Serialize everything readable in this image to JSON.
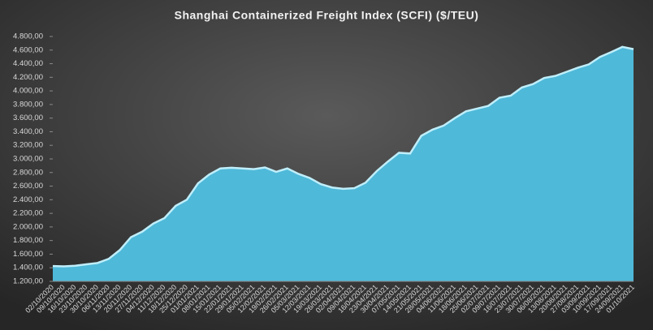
{
  "chart_data": {
    "type": "area",
    "title": "Shanghai Containerized Freight Index  (SCFI) ($/TEU)",
    "categories": [
      "02/10/2020",
      "09/10/2020",
      "16/10/2020",
      "23/10/2020",
      "30/10/2020",
      "06/11/2020",
      "13/11/2020",
      "20/11/2020",
      "27/11/2020",
      "04/12/2020",
      "11/12/2020",
      "18/12/2020",
      "25/12/2020",
      "01/01/2021",
      "08/01/2021",
      "15/01/2021",
      "22/01/2021",
      "29/01/2021",
      "05/02/2021",
      "12/02/2021",
      "19/02/2021",
      "26/02/2021",
      "05/03/2021",
      "12/03/2021",
      "19/03/2021",
      "26/03/2021",
      "02/04/2021",
      "09/04/2021",
      "16/04/2021",
      "23/04/2021",
      "30/04/2021",
      "07/05/2021",
      "14/05/2021",
      "21/05/2021",
      "28/05/2021",
      "04/06/2021",
      "11/06/2021",
      "18/06/2021",
      "25/06/2021",
      "02/07/2021",
      "09/07/2021",
      "16/07/2021",
      "23/07/2021",
      "30/07/2021",
      "06/08/2021",
      "13/08/2021",
      "20/08/2021",
      "27/08/2021",
      "03/09/2021",
      "10/09/2021",
      "17/09/2021",
      "24/09/2021",
      "01/10/2021"
    ],
    "values": [
      1425,
      1420,
      1430,
      1450,
      1470,
      1530,
      1660,
      1850,
      1930,
      2050,
      2130,
      2310,
      2400,
      2640,
      2770,
      2860,
      2870,
      2860,
      2850,
      2875,
      2810,
      2860,
      2780,
      2720,
      2630,
      2580,
      2560,
      2570,
      2650,
      2820,
      2960,
      3090,
      3080,
      3340,
      3430,
      3490,
      3600,
      3700,
      3740,
      3780,
      3900,
      3930,
      4050,
      4100,
      4190,
      4220,
      4280,
      4340,
      4390,
      4500,
      4570,
      4647,
      4614
    ],
    "color": "#4fb9d9",
    "ylim": [
      1200,
      4800
    ],
    "yticks": [
      {
        "value": 1200,
        "label": "1.200,00"
      },
      {
        "value": 1400,
        "label": "1.400,00"
      },
      {
        "value": 1600,
        "label": "1.600,00"
      },
      {
        "value": 1800,
        "label": "1.800,00"
      },
      {
        "value": 2000,
        "label": "2.000,00"
      },
      {
        "value": 2200,
        "label": "2.200,00"
      },
      {
        "value": 2400,
        "label": "2.400,00"
      },
      {
        "value": 2600,
        "label": "2.600,00"
      },
      {
        "value": 2800,
        "label": "2.800,00"
      },
      {
        "value": 3000,
        "label": "3.000,00"
      },
      {
        "value": 3200,
        "label": "3.200,00"
      },
      {
        "value": 3400,
        "label": "3.400,00"
      },
      {
        "value": 3600,
        "label": "3.600,00"
      },
      {
        "value": 3800,
        "label": "3.800,00"
      },
      {
        "value": 4000,
        "label": "4.000,00"
      },
      {
        "value": 4200,
        "label": "4.200,00"
      },
      {
        "value": 4400,
        "label": "4.400,00"
      },
      {
        "value": 4600,
        "label": "4.600,00"
      },
      {
        "value": 4800,
        "label": "4.800,00"
      }
    ],
    "grid": false
  }
}
